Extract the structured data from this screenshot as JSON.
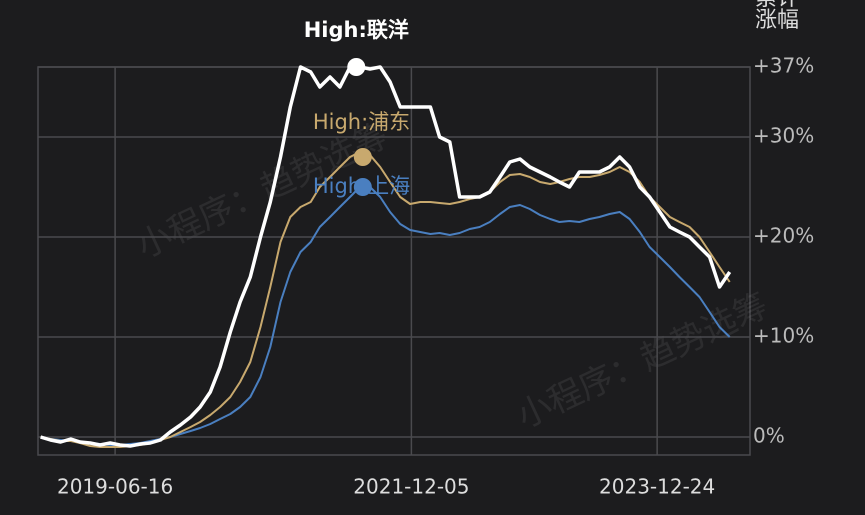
{
  "chart_data": {
    "type": "line",
    "y_label": "累计涨幅",
    "watermark": "小程序：趋势选筹",
    "x": [
      "2018-11-01",
      "2018-12-01",
      "2019-01-01",
      "2019-02-01",
      "2019-03-01",
      "2019-04-01",
      "2019-05-01",
      "2019-06-01",
      "2019-07-01",
      "2019-08-01",
      "2019-09-01",
      "2019-10-01",
      "2019-11-01",
      "2019-12-01",
      "2020-01-01",
      "2020-02-01",
      "2020-03-01",
      "2020-04-01",
      "2020-05-01",
      "2020-06-01",
      "2020-07-01",
      "2020-08-01",
      "2020-09-01",
      "2020-10-01",
      "2020-11-01",
      "2020-12-01",
      "2021-01-01",
      "2021-02-01",
      "2021-03-01",
      "2021-04-01",
      "2021-05-01",
      "2021-06-01",
      "2021-07-01",
      "2021-08-01",
      "2021-09-01",
      "2021-10-01",
      "2021-11-01",
      "2021-12-01",
      "2022-01-01",
      "2022-02-01",
      "2022-03-01",
      "2022-04-01",
      "2022-05-01",
      "2022-06-01",
      "2022-07-01",
      "2022-08-01",
      "2022-09-01",
      "2022-10-01",
      "2022-11-01",
      "2022-12-01",
      "2023-01-01",
      "2023-02-01",
      "2023-03-01",
      "2023-04-01",
      "2023-05-01",
      "2023-06-01",
      "2023-07-01",
      "2023-08-01",
      "2023-09-01",
      "2023-10-01",
      "2023-11-01",
      "2023-12-01",
      "2024-01-01",
      "2024-02-01",
      "2024-03-01",
      "2024-04-01",
      "2024-05-01",
      "2024-06-01",
      "2024-07-01",
      "2024-08-01"
    ],
    "series": [
      {
        "name": "联洋",
        "color": "#ffffff",
        "values": [
          0,
          -0.3,
          -0.5,
          -0.2,
          -0.5,
          -0.6,
          -0.8,
          -0.6,
          -0.8,
          -0.9,
          -0.7,
          -0.6,
          -0.3,
          0.5,
          1.2,
          2,
          3,
          4.5,
          7,
          10.5,
          13.5,
          16,
          20,
          23.5,
          28,
          33,
          37,
          36.5,
          35,
          36,
          35,
          37,
          37,
          36.8,
          37,
          35.5,
          33,
          33,
          33,
          33,
          30,
          29.5,
          24,
          24,
          24,
          24.5,
          26,
          27.5,
          27.8,
          27,
          26.5,
          26,
          25.5,
          25,
          26.5,
          26.5,
          26.5,
          27,
          28,
          27,
          25,
          24,
          22.5,
          21,
          20.5,
          20,
          19,
          18,
          15,
          16.5
        ]
      },
      {
        "name": "浦东",
        "color": "#c8a96e",
        "values": [
          0,
          -0.2,
          -0.4,
          -0.4,
          -0.6,
          -0.9,
          -1,
          -1,
          -1,
          -0.9,
          -0.8,
          -0.6,
          -0.3,
          0,
          0.5,
          1,
          1.5,
          2.2,
          3,
          4,
          5.5,
          7.5,
          11,
          15,
          19.5,
          22,
          23,
          23.5,
          25,
          26,
          27,
          28,
          28.5,
          28.2,
          27,
          25.5,
          24,
          23.3,
          23.5,
          23.5,
          23.4,
          23.3,
          23.5,
          23.8,
          24,
          24.5,
          25.5,
          26.2,
          26.3,
          26,
          25.5,
          25.3,
          25.5,
          25.8,
          26,
          26,
          26.2,
          26.5,
          27,
          26.5,
          25.5,
          24,
          23,
          22,
          21.5,
          21,
          20,
          18.5,
          17,
          15.5
        ]
      },
      {
        "name": "上海",
        "color": "#4a7fc0",
        "values": [
          0,
          -0.2,
          -0.3,
          -0.4,
          -0.5,
          -0.6,
          -0.7,
          -0.8,
          -0.8,
          -0.7,
          -0.6,
          -0.4,
          -0.2,
          0,
          0.3,
          0.6,
          0.9,
          1.3,
          1.8,
          2.3,
          3,
          4,
          6,
          9,
          13.5,
          16.5,
          18.5,
          19.5,
          21,
          22,
          23,
          24,
          25,
          25,
          24,
          22.5,
          21.3,
          20.7,
          20.5,
          20.3,
          20.4,
          20.2,
          20.4,
          20.8,
          21,
          21.5,
          22.3,
          23,
          23.2,
          22.8,
          22.2,
          21.8,
          21.5,
          21.6,
          21.5,
          21.8,
          22,
          22.3,
          22.5,
          21.8,
          20.5,
          19,
          18,
          17,
          16,
          15,
          14,
          12.5,
          11,
          10
        ]
      }
    ],
    "annotations": [
      {
        "text": "High:联洋",
        "x": "2021-06-20",
        "y": 37,
        "color": "#ffffff"
      },
      {
        "text": "High:浦东",
        "x": "2021-07-10",
        "y": 28,
        "color": "#c8a96e"
      },
      {
        "text": "High:上海",
        "x": "2021-07-10",
        "y": 25,
        "color": "#4a7fc0"
      }
    ],
    "xlim": [
      "2018-10-24",
      "2024-10-02"
    ],
    "xticks": [
      "2019-06-16",
      "2021-12-05",
      "2023-12-24"
    ],
    "ylim": [
      -1.8,
      37
    ],
    "yticks": [
      {
        "value": 0,
        "label": "0%"
      },
      {
        "value": 10,
        "label": "+10%"
      },
      {
        "value": 20,
        "label": "+20%"
      },
      {
        "value": 30,
        "label": "+30%"
      },
      {
        "value": 37,
        "label": "+37%"
      }
    ],
    "grid": true
  }
}
